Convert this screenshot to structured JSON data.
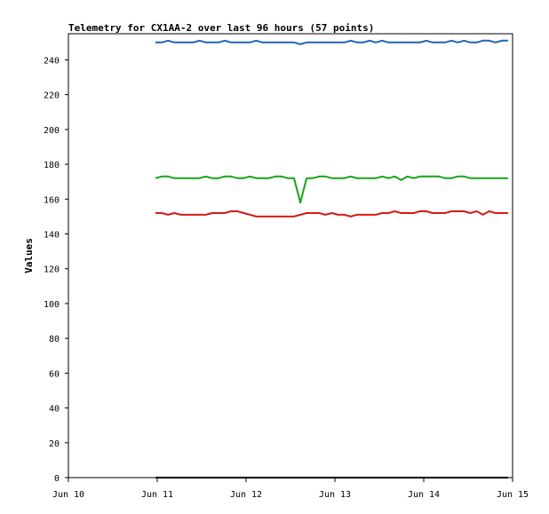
{
  "chart_data": {
    "type": "line",
    "title": "Telemetry for CX1AA-2 over last 96 hours (57 points)",
    "ylabel": "Values",
    "xlabel": "",
    "xlim": [
      "Jun 10",
      "Jun 15"
    ],
    "ylim": [
      0,
      255
    ],
    "x_ticks": [
      "Jun 10",
      "Jun 11",
      "Jun 12",
      "Jun 13",
      "Jun 14",
      "Jun 15"
    ],
    "y_ticks": [
      0,
      20,
      40,
      60,
      80,
      100,
      120,
      140,
      160,
      180,
      200,
      220,
      240
    ],
    "grid": false,
    "legend": "none",
    "x_start": "Jun 11",
    "x_end": "Jun 15",
    "series": [
      {
        "color": "#1f63b5",
        "values": [
          250,
          250,
          251,
          250,
          250,
          250,
          250,
          251,
          250,
          250,
          250,
          251,
          250,
          250,
          250,
          250,
          251,
          250,
          250,
          250,
          250,
          250,
          250,
          249,
          250,
          250,
          250,
          250,
          250,
          250,
          250,
          251,
          250,
          250,
          251,
          250,
          251,
          250,
          250,
          250,
          250,
          250,
          250,
          251,
          250,
          250,
          250,
          251,
          250,
          251,
          250,
          250,
          251,
          251,
          250,
          251,
          251
        ]
      },
      {
        "color": "#15a415",
        "values": [
          172,
          173,
          173,
          172,
          172,
          172,
          172,
          172,
          173,
          172,
          172,
          173,
          173,
          172,
          172,
          173,
          172,
          172,
          172,
          173,
          173,
          172,
          172,
          158,
          172,
          172,
          173,
          173,
          172,
          172,
          172,
          173,
          172,
          172,
          172,
          172,
          173,
          172,
          173,
          171,
          173,
          172,
          173,
          173,
          173,
          173,
          172,
          172,
          173,
          173,
          172,
          172,
          172,
          172,
          172,
          172,
          172
        ]
      },
      {
        "color": "#d41a1a",
        "values": [
          152,
          152,
          151,
          152,
          151,
          151,
          151,
          151,
          151,
          152,
          152,
          152,
          153,
          153,
          152,
          151,
          150,
          150,
          150,
          150,
          150,
          150,
          150,
          151,
          152,
          152,
          152,
          151,
          152,
          151,
          151,
          150,
          151,
          151,
          151,
          151,
          152,
          152,
          153,
          152,
          152,
          152,
          153,
          153,
          152,
          152,
          152,
          153,
          153,
          153,
          152,
          153,
          151,
          153,
          152,
          152,
          152
        ]
      },
      {
        "color": "#000000",
        "values": [
          0,
          0,
          0,
          0,
          0,
          0,
          0,
          0,
          0,
          0,
          0,
          0,
          0,
          0,
          0,
          0,
          0,
          0,
          0,
          0,
          0,
          0,
          0,
          0,
          0,
          0,
          0,
          0,
          0,
          0,
          0,
          0,
          0,
          0,
          0,
          0,
          0,
          0,
          0,
          0,
          0,
          0,
          0,
          0,
          0,
          0,
          0,
          0,
          0,
          0,
          0,
          0,
          0,
          0,
          0,
          0,
          0
        ]
      }
    ]
  }
}
